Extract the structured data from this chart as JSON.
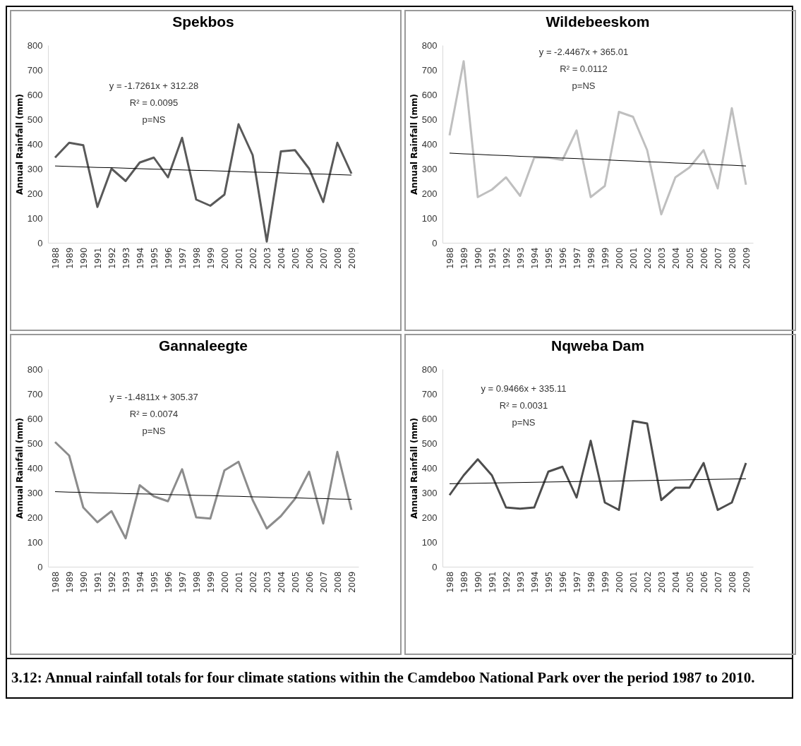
{
  "chart_data": [
    {
      "type": "line",
      "title": "Spekbos",
      "ylabel": "Annual Rainfall (mm)",
      "x": [
        1988,
        1989,
        1990,
        1991,
        1992,
        1993,
        1994,
        1995,
        1996,
        1997,
        1998,
        1999,
        2000,
        2001,
        2002,
        2003,
        2004,
        2005,
        2006,
        2007,
        2008,
        2009
      ],
      "xlim": [
        1987.5,
        2009.5
      ],
      "xticks": [
        1988,
        1989,
        1990,
        1991,
        1992,
        1993,
        1994,
        1995,
        1996,
        1997,
        1998,
        1999,
        2000,
        2001,
        2002,
        2003,
        2004,
        2005,
        2006,
        2007,
        2008,
        2009
      ],
      "ylim": [
        0,
        800
      ],
      "yticks": [
        0,
        100,
        200,
        300,
        400,
        500,
        600,
        700,
        800
      ],
      "series": [
        {
          "color": "#595959",
          "values": [
            345,
            405,
            395,
            145,
            300,
            250,
            325,
            345,
            265,
            425,
            175,
            150,
            195,
            480,
            355,
            5,
            370,
            375,
            300,
            165,
            405,
            280
          ]
        },
        {
          "type": "line",
          "color": "#000000",
          "values": [
            311,
            309,
            307,
            305,
            304,
            302,
            300,
            298,
            297,
            295,
            293,
            292,
            290,
            288,
            286,
            285,
            283,
            281,
            279,
            278,
            276,
            274
          ]
        }
      ],
      "annotations": [
        "y = -1.7261x + 312.28",
        "R² = 0.0095",
        "p=NS"
      ]
    },
    {
      "type": "line",
      "title": "Wildebeeskom",
      "ylabel": "Annual Rainfall (mm)",
      "x": [
        1988,
        1989,
        1990,
        1991,
        1992,
        1993,
        1994,
        1995,
        1996,
        1997,
        1998,
        1999,
        2000,
        2001,
        2002,
        2003,
        2004,
        2005,
        2006,
        2007,
        2008,
        2009
      ],
      "xlim": [
        1987.5,
        2009.5
      ],
      "xticks": [
        1988,
        1989,
        1990,
        1991,
        1992,
        1993,
        1994,
        1995,
        1996,
        1997,
        1998,
        1999,
        2000,
        2001,
        2002,
        2003,
        2004,
        2005,
        2006,
        2007,
        2008,
        2009
      ],
      "ylim": [
        0,
        800
      ],
      "yticks": [
        0,
        100,
        200,
        300,
        400,
        500,
        600,
        700,
        800
      ],
      "series": [
        {
          "color": "#bfbfbf",
          "values": [
            435,
            735,
            185,
            215,
            265,
            190,
            345,
            345,
            335,
            455,
            185,
            230,
            530,
            510,
            375,
            115,
            265,
            305,
            375,
            220,
            545,
            235
          ]
        },
        {
          "type": "line",
          "color": "#000000",
          "values": [
            363,
            360,
            358,
            355,
            353,
            350,
            348,
            345,
            343,
            341,
            338,
            336,
            333,
            331,
            328,
            326,
            323,
            321,
            319,
            316,
            314,
            311
          ]
        }
      ],
      "annotations": [
        "y = -2.4467x + 365.01",
        "R² = 0.0112",
        "p=NS"
      ]
    },
    {
      "type": "line",
      "title": "Gannaleegte",
      "ylabel": "Annual Rainfall (mm)",
      "x": [
        1988,
        1989,
        1990,
        1991,
        1992,
        1993,
        1994,
        1995,
        1996,
        1997,
        1998,
        1999,
        2000,
        2001,
        2002,
        2003,
        2004,
        2005,
        2006,
        2007,
        2008,
        2009
      ],
      "xlim": [
        1987.5,
        2009.5
      ],
      "xticks": [
        1988,
        1989,
        1990,
        1991,
        1992,
        1993,
        1994,
        1995,
        1996,
        1997,
        1998,
        1999,
        2000,
        2001,
        2002,
        2003,
        2004,
        2005,
        2006,
        2007,
        2008,
        2009
      ],
      "ylim": [
        0,
        800
      ],
      "yticks": [
        0,
        100,
        200,
        300,
        400,
        500,
        600,
        700,
        800
      ],
      "series": [
        {
          "color": "#8c8c8c",
          "values": [
            505,
            450,
            240,
            180,
            225,
            115,
            330,
            285,
            265,
            395,
            200,
            195,
            390,
            425,
            270,
            155,
            205,
            275,
            385,
            175,
            465,
            230
          ]
        },
        {
          "type": "line",
          "color": "#000000",
          "values": [
            304,
            302,
            301,
            299,
            298,
            296,
            295,
            294,
            292,
            291,
            289,
            288,
            286,
            285,
            283,
            282,
            280,
            279,
            277,
            276,
            274,
            273
          ]
        }
      ],
      "annotations": [
        "y = -1.4811x + 305.37",
        "R² = 0.0074",
        "p=NS"
      ]
    },
    {
      "type": "line",
      "title": "Nqweba Dam",
      "ylabel": "Annual Rainfall (mm)",
      "x": [
        1988,
        1989,
        1990,
        1991,
        1992,
        1993,
        1994,
        1995,
        1996,
        1997,
        1998,
        1999,
        2000,
        2001,
        2002,
        2003,
        2004,
        2005,
        2006,
        2007,
        2008,
        2009
      ],
      "xlim": [
        1987.5,
        2009.5
      ],
      "xticks": [
        1988,
        1989,
        1990,
        1991,
        1992,
        1993,
        1994,
        1995,
        1996,
        1997,
        1998,
        1999,
        2000,
        2001,
        2002,
        2003,
        2004,
        2005,
        2006,
        2007,
        2008,
        2009
      ],
      "ylim": [
        0,
        800
      ],
      "yticks": [
        0,
        100,
        200,
        300,
        400,
        500,
        600,
        700,
        800
      ],
      "series": [
        {
          "color": "#4d4d4d",
          "values": [
            290,
            370,
            435,
            370,
            240,
            235,
            240,
            385,
            405,
            280,
            510,
            260,
            230,
            590,
            580,
            270,
            320,
            320,
            420,
            230,
            260,
            420
          ]
        },
        {
          "type": "line",
          "color": "#000000",
          "values": [
            336,
            337,
            338,
            339,
            340,
            341,
            342,
            343,
            344,
            345,
            346,
            346,
            347,
            348,
            349,
            350,
            351,
            352,
            353,
            354,
            355,
            356
          ]
        }
      ],
      "annotations": [
        "y = 0.9466x + 335.11",
        "R² = 0.0031",
        "p=NS",
        "3.12: Annual rainfall totals for four climate stations within the Camdeboo National Park over the period 1987 to 2010."
      ]
    }
  ]
}
